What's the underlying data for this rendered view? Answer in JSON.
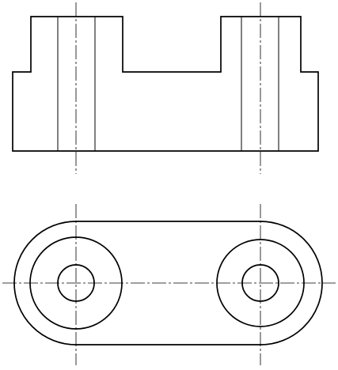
{
  "drawing": {
    "type": "orthographic-projection",
    "views": [
      {
        "view": "front-view",
        "features": [
          "stepped-body-with-two-raised-bosses",
          "hidden-bore-lines",
          "vertical-center-lines"
        ]
      },
      {
        "view": "top-view",
        "features": [
          "obround-base-outline",
          "two-boss-circles",
          "two-bore-circles",
          "horizontal-center-line",
          "vertical-center-lines"
        ]
      }
    ],
    "colors": {
      "line": "#000000",
      "background": "#ffffff"
    }
  }
}
